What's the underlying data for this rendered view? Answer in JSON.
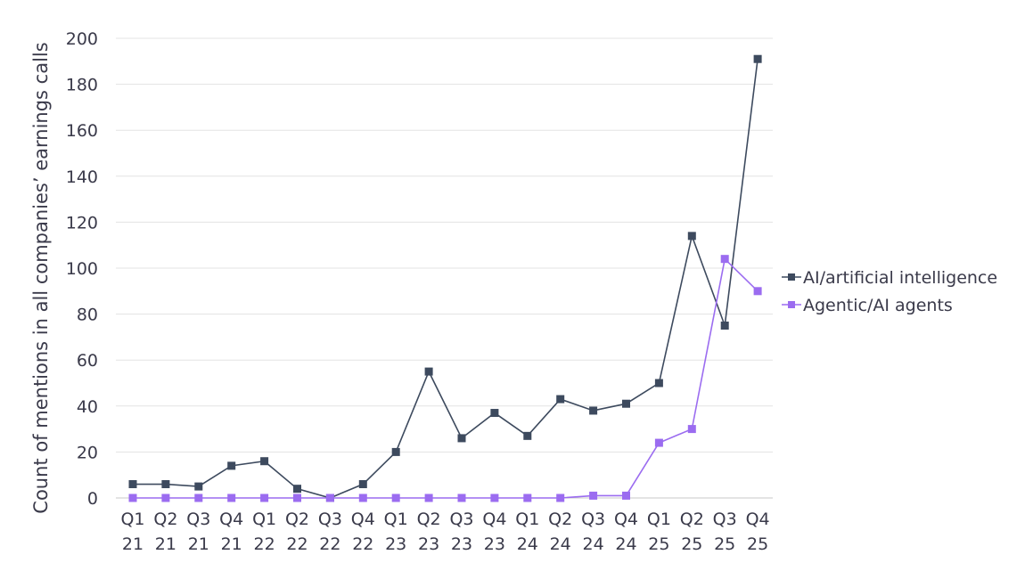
{
  "chart_data": {
    "type": "line",
    "title": "",
    "ylabel": "Count of mentions in all companies’ earnings calls",
    "xlabel": "",
    "ylim": [
      0,
      200
    ],
    "yticks": [
      0,
      20,
      40,
      60,
      80,
      100,
      120,
      140,
      160,
      180,
      200
    ],
    "grid": true,
    "legend_position": "right",
    "categories": [
      [
        "Q1",
        "21"
      ],
      [
        "Q2",
        "21"
      ],
      [
        "Q3",
        "21"
      ],
      [
        "Q4",
        "21"
      ],
      [
        "Q1",
        "22"
      ],
      [
        "Q2",
        "22"
      ],
      [
        "Q3",
        "22"
      ],
      [
        "Q4",
        "22"
      ],
      [
        "Q1",
        "23"
      ],
      [
        "Q2",
        "23"
      ],
      [
        "Q3",
        "23"
      ],
      [
        "Q4",
        "23"
      ],
      [
        "Q1",
        "24"
      ],
      [
        "Q2",
        "24"
      ],
      [
        "Q3",
        "24"
      ],
      [
        "Q4",
        "24"
      ],
      [
        "Q1",
        "25"
      ],
      [
        "Q2",
        "25"
      ],
      [
        "Q3",
        "25"
      ],
      [
        "Q4",
        "25"
      ]
    ],
    "series": [
      {
        "name": "AI/artificial intelligence",
        "color": "#3d4a5e",
        "marker": "square",
        "values": [
          6,
          6,
          5,
          14,
          16,
          4,
          0,
          6,
          20,
          55,
          26,
          37,
          27,
          43,
          38,
          41,
          50,
          114,
          75,
          191
        ]
      },
      {
        "name": "Agentic/AI agents",
        "color": "#9b6cf0",
        "marker": "square",
        "values": [
          0,
          0,
          0,
          0,
          0,
          0,
          0,
          0,
          0,
          0,
          0,
          0,
          0,
          0,
          1,
          1,
          24,
          30,
          104,
          90
        ]
      }
    ]
  }
}
